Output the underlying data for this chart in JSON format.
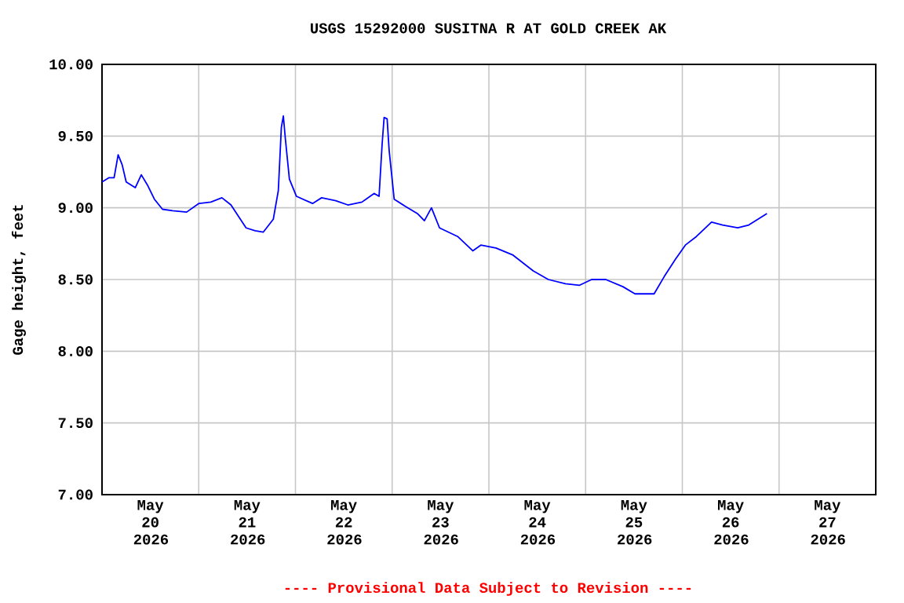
{
  "chart_data": {
    "type": "line",
    "title": "USGS 15292000 SUSITNA R AT GOLD CREEK AK",
    "ylabel": "Gage height, feet",
    "annotations": [
      "---- Provisional Data Subject to Revision ----"
    ],
    "x": [
      "2026-05-20T00:00",
      "2026-05-20T01:45",
      "2026-05-20T03:00",
      "2026-05-20T04:00",
      "2026-05-20T05:00",
      "2026-05-20T06:00",
      "2026-05-20T08:15",
      "2026-05-20T09:45",
      "2026-05-20T11:15",
      "2026-05-20T13:00",
      "2026-05-20T15:00",
      "2026-05-20T17:30",
      "2026-05-20T21:00",
      "2026-05-21T00:00",
      "2026-05-21T03:00",
      "2026-05-21T05:45",
      "2026-05-21T08:00",
      "2026-05-21T11:45",
      "2026-05-21T14:00",
      "2026-05-21T16:00",
      "2026-05-21T18:30",
      "2026-05-21T19:45",
      "2026-05-21T20:30",
      "2026-05-21T21:00",
      "2026-05-21T21:30",
      "2026-05-21T22:30",
      "2026-05-22T00:15",
      "2026-05-22T04:15",
      "2026-05-22T06:30",
      "2026-05-22T10:00",
      "2026-05-22T13:00",
      "2026-05-22T16:30",
      "2026-05-22T19:30",
      "2026-05-22T20:45",
      "2026-05-22T21:30",
      "2026-05-22T22:00",
      "2026-05-22T22:45",
      "2026-05-22T23:15",
      "2026-05-23T00:30",
      "2026-05-23T03:15",
      "2026-05-23T06:15",
      "2026-05-23T08:00",
      "2026-05-23T09:45",
      "2026-05-23T11:45",
      "2026-05-23T16:15",
      "2026-05-23T20:00",
      "2026-05-23T22:00",
      "2026-05-24T01:45",
      "2026-05-24T06:00",
      "2026-05-24T11:00",
      "2026-05-24T14:45",
      "2026-05-24T19:00",
      "2026-05-24T22:30",
      "2026-05-25T01:30",
      "2026-05-25T05:00",
      "2026-05-25T09:15",
      "2026-05-25T12:15",
      "2026-05-25T17:00",
      "2026-05-25T19:30",
      "2026-05-25T22:15",
      "2026-05-26T00:45",
      "2026-05-26T03:30",
      "2026-05-26T07:15",
      "2026-05-26T10:00",
      "2026-05-26T13:45",
      "2026-05-26T16:30",
      "2026-05-26T21:00"
    ],
    "series": [
      {
        "color": "#0000ff",
        "values": [
          9.18,
          9.21,
          9.21,
          9.37,
          9.3,
          9.18,
          9.14,
          9.23,
          9.16,
          9.06,
          8.99,
          8.98,
          8.97,
          9.03,
          9.04,
          9.07,
          9.02,
          8.86,
          8.84,
          8.83,
          8.92,
          9.12,
          9.56,
          9.64,
          9.48,
          9.2,
          9.08,
          9.03,
          9.07,
          9.05,
          9.02,
          9.04,
          9.1,
          9.08,
          9.44,
          9.63,
          9.62,
          9.4,
          9.06,
          9.01,
          8.96,
          8.91,
          9.0,
          8.86,
          8.8,
          8.7,
          8.74,
          8.72,
          8.67,
          8.56,
          8.5,
          8.47,
          8.46,
          8.5,
          8.5,
          8.45,
          8.4,
          8.4,
          8.52,
          8.64,
          8.74,
          8.8,
          8.9,
          8.88,
          8.86,
          8.88,
          8.96
        ]
      }
    ],
    "xlim": [
      "2026-05-20T00:00",
      "2026-05-28T00:00"
    ],
    "xticks": [
      {
        "value": "2026-05-20T12:00",
        "label": "May 20 2026"
      },
      {
        "value": "2026-05-21T00:00",
        "label": null
      },
      {
        "value": "2026-05-21T12:00",
        "label": "May 21 2026"
      },
      {
        "value": "2026-05-22T00:00",
        "label": null
      },
      {
        "value": "2026-05-22T12:00",
        "label": "May 22 2026"
      },
      {
        "value": "2026-05-23T00:00",
        "label": null
      },
      {
        "value": "2026-05-23T12:00",
        "label": "May 23 2026"
      },
      {
        "value": "2026-05-24T00:00",
        "label": null
      },
      {
        "value": "2026-05-24T12:00",
        "label": "May 24 2026"
      },
      {
        "value": "2026-05-25T00:00",
        "label": null
      },
      {
        "value": "2026-05-25T12:00",
        "label": "May 25 2026"
      },
      {
        "value": "2026-05-26T00:00",
        "label": null
      },
      {
        "value": "2026-05-26T12:00",
        "label": "May 26 2026"
      },
      {
        "value": "2026-05-27T00:00",
        "label": null
      },
      {
        "value": "2026-05-27T12:00",
        "label": "May 27 2026"
      }
    ],
    "ylim": [
      7,
      10
    ],
    "yticks": [
      {
        "value": 7,
        "label": "7.00"
      },
      {
        "value": 7.5,
        "label": "7.50"
      },
      {
        "value": 8,
        "label": "8.00"
      },
      {
        "value": 8.5,
        "label": "8.50"
      },
      {
        "value": 9,
        "label": "9.00"
      },
      {
        "value": 9.5,
        "label": "9.50"
      },
      {
        "value": 10,
        "label": "10.00"
      }
    ],
    "grid": true,
    "marker": "none",
    "line_style": "solid"
  }
}
